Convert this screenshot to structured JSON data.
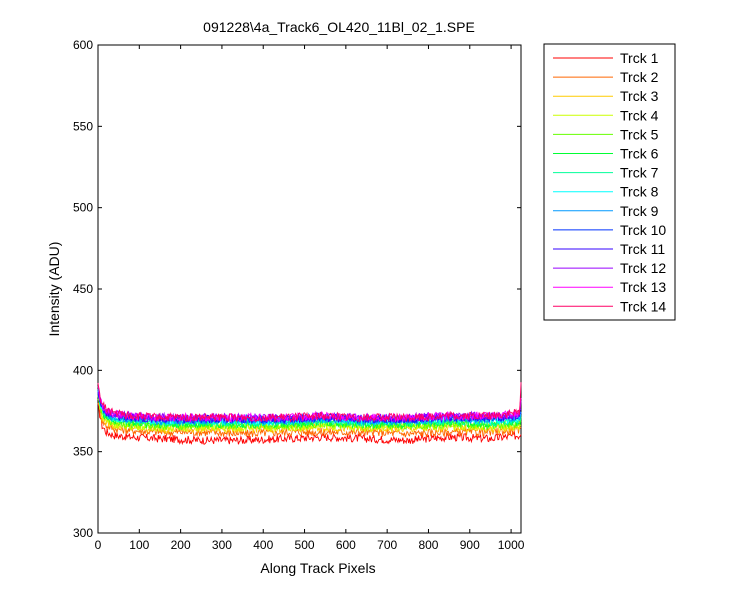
{
  "chart_data": {
    "type": "line",
    "title": "091228\\4a_Track6_OL420_11Bl_02_1.SPE",
    "xlabel": "Along Track Pixels",
    "ylabel": "Intensity (ADU)",
    "xlim": [
      0,
      1024
    ],
    "ylim": [
      300,
      600
    ],
    "xticks": [
      0,
      100,
      200,
      300,
      400,
      500,
      600,
      700,
      800,
      900,
      1000
    ],
    "yticks": [
      300,
      350,
      400,
      450,
      500,
      550,
      600
    ],
    "grid": false,
    "legend_position": "outside-right",
    "series": [
      {
        "name": "Trck 1",
        "color": "#ff0000",
        "x": [
          0,
          5,
          10,
          20,
          40,
          80,
          150,
          250,
          350,
          450,
          550,
          650,
          750,
          850,
          950,
          1020,
          1024
        ],
        "y": [
          378,
          372,
          366,
          362,
          360,
          359,
          358,
          357,
          357,
          358,
          359,
          358,
          357,
          359,
          358,
          360,
          362
        ]
      },
      {
        "name": "Trck 2",
        "color": "#ff6600",
        "x": [
          0,
          5,
          10,
          20,
          40,
          80,
          150,
          250,
          350,
          450,
          550,
          650,
          750,
          850,
          950,
          1020,
          1024
        ],
        "y": [
          381,
          374,
          369,
          366,
          364,
          363,
          362,
          362,
          361,
          362,
          362,
          362,
          361,
          362,
          362,
          363,
          365
        ]
      },
      {
        "name": "Trck 3",
        "color": "#ffcc00",
        "x": [
          0,
          5,
          10,
          20,
          40,
          80,
          150,
          250,
          350,
          450,
          550,
          650,
          750,
          850,
          950,
          1020,
          1024
        ],
        "y": [
          383,
          376,
          371,
          368,
          366,
          365,
          364,
          364,
          364,
          364,
          365,
          364,
          364,
          365,
          364,
          365,
          367
        ]
      },
      {
        "name": "Trck 4",
        "color": "#ccff00",
        "x": [
          0,
          5,
          10,
          20,
          40,
          80,
          150,
          250,
          350,
          450,
          550,
          650,
          750,
          850,
          950,
          1020,
          1024
        ],
        "y": [
          384,
          377,
          372,
          369,
          367,
          366,
          365,
          365,
          365,
          365,
          366,
          365,
          365,
          366,
          365,
          366,
          368
        ]
      },
      {
        "name": "Trck 5",
        "color": "#66ff00",
        "x": [
          0,
          5,
          10,
          20,
          40,
          80,
          150,
          250,
          350,
          450,
          550,
          650,
          750,
          850,
          950,
          1020,
          1024
        ],
        "y": [
          385,
          378,
          373,
          370,
          368,
          367,
          366,
          366,
          366,
          366,
          367,
          366,
          366,
          367,
          366,
          367,
          369
        ]
      },
      {
        "name": "Trck 6",
        "color": "#00ff33",
        "x": [
          0,
          5,
          10,
          20,
          40,
          80,
          150,
          250,
          350,
          450,
          550,
          650,
          750,
          850,
          950,
          1020,
          1024
        ],
        "y": [
          386,
          379,
          374,
          371,
          369,
          368,
          367,
          367,
          367,
          367,
          368,
          367,
          367,
          368,
          367,
          368,
          370
        ]
      },
      {
        "name": "Trck 7",
        "color": "#00ff99",
        "x": [
          0,
          5,
          10,
          20,
          40,
          80,
          150,
          250,
          350,
          450,
          550,
          650,
          750,
          850,
          950,
          1020,
          1024
        ],
        "y": [
          386,
          380,
          375,
          372,
          370,
          369,
          368,
          368,
          368,
          368,
          369,
          368,
          368,
          369,
          368,
          369,
          371
        ]
      },
      {
        "name": "Trck 8",
        "color": "#00ffff",
        "x": [
          0,
          5,
          10,
          20,
          40,
          80,
          150,
          250,
          350,
          450,
          550,
          650,
          750,
          850,
          950,
          1020,
          1024
        ],
        "y": [
          387,
          380,
          376,
          373,
          371,
          370,
          369,
          369,
          369,
          369,
          370,
          369,
          369,
          370,
          369,
          370,
          372
        ]
      },
      {
        "name": "Trck 9",
        "color": "#0099ff",
        "x": [
          0,
          5,
          10,
          20,
          40,
          80,
          150,
          250,
          350,
          450,
          550,
          650,
          750,
          850,
          950,
          1020,
          1024
        ],
        "y": [
          387,
          381,
          376,
          373,
          371,
          370,
          369,
          369,
          369,
          369,
          370,
          369,
          369,
          370,
          370,
          371,
          373
        ]
      },
      {
        "name": "Trck 10",
        "color": "#0033ff",
        "x": [
          0,
          5,
          10,
          20,
          40,
          80,
          150,
          250,
          350,
          450,
          550,
          650,
          750,
          850,
          950,
          1020,
          1024
        ],
        "y": [
          388,
          382,
          377,
          374,
          372,
          371,
          370,
          370,
          370,
          370,
          371,
          370,
          370,
          371,
          371,
          372,
          375
        ]
      },
      {
        "name": "Trck 11",
        "color": "#3300ff",
        "x": [
          0,
          5,
          10,
          20,
          40,
          80,
          150,
          250,
          350,
          450,
          550,
          650,
          750,
          850,
          950,
          1020,
          1024
        ],
        "y": [
          388,
          382,
          377,
          374,
          372,
          371,
          370,
          370,
          370,
          370,
          371,
          370,
          370,
          371,
          371,
          372,
          376
        ]
      },
      {
        "name": "Trck 12",
        "color": "#9900ff",
        "x": [
          0,
          5,
          10,
          20,
          40,
          80,
          150,
          250,
          350,
          450,
          550,
          650,
          750,
          850,
          950,
          1020,
          1024
        ],
        "y": [
          389,
          383,
          378,
          375,
          373,
          372,
          371,
          371,
          371,
          371,
          372,
          371,
          371,
          372,
          372,
          373,
          380
        ]
      },
      {
        "name": "Trck 13",
        "color": "#ff00ff",
        "x": [
          0,
          5,
          10,
          20,
          40,
          80,
          150,
          250,
          350,
          450,
          550,
          650,
          750,
          850,
          950,
          1020,
          1024
        ],
        "y": [
          389,
          383,
          378,
          375,
          373,
          372,
          371,
          371,
          371,
          371,
          372,
          371,
          371,
          372,
          372,
          373,
          385
        ]
      },
      {
        "name": "Trck 14",
        "color": "#ff0066",
        "x": [
          0,
          5,
          10,
          20,
          40,
          80,
          150,
          250,
          350,
          450,
          550,
          650,
          750,
          850,
          950,
          1020,
          1024
        ],
        "y": [
          390,
          384,
          379,
          376,
          374,
          372,
          371,
          371,
          371,
          371,
          372,
          371,
          371,
          372,
          372,
          374,
          393
        ]
      }
    ]
  }
}
